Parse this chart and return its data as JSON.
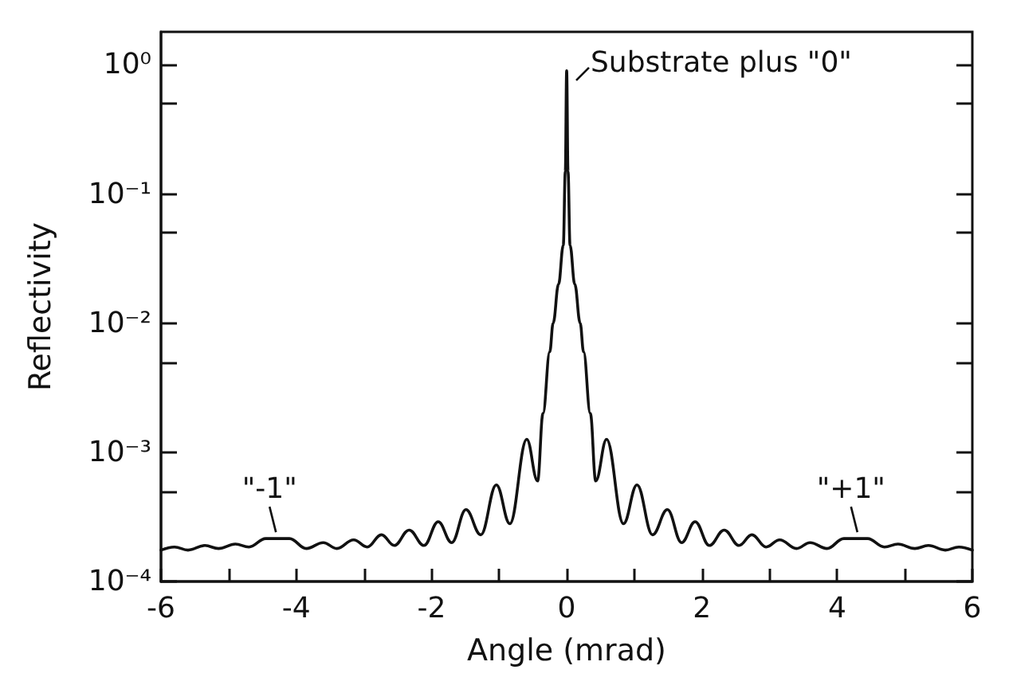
{
  "chart_data": {
    "type": "line",
    "xlabel": "Angle (mrad)",
    "ylabel": "Reflectivity",
    "log": "y",
    "grid": false,
    "marker": "none",
    "line_style": "solid",
    "xlim": [
      -6,
      6
    ],
    "ylim": [
      0.0001,
      1.8
    ],
    "xticks": [
      -6,
      {
        "value": -5,
        "label": null
      },
      -4,
      {
        "value": -3,
        "label": null
      },
      -2,
      {
        "value": -1,
        "label": null
      },
      0,
      {
        "value": 1,
        "label": null
      },
      2,
      {
        "value": 3,
        "label": null
      },
      4,
      {
        "value": 5,
        "label": null
      },
      6
    ],
    "yticks": [
      {
        "value": 0.0001,
        "label": "10⁻⁴"
      },
      {
        "value": 0.0005,
        "label": null
      },
      {
        "value": 0.001,
        "label": "10⁻³"
      },
      {
        "value": 0.005,
        "label": null
      },
      {
        "value": 0.01,
        "label": "10⁻²"
      },
      {
        "value": 0.05,
        "label": null
      },
      {
        "value": 0.1,
        "label": "10⁻¹"
      },
      {
        "value": 0.5,
        "label": null
      },
      {
        "value": 1,
        "label": "10⁰"
      }
    ],
    "annotations": [
      {
        "text": "Substrate plus \"0\"",
        "x": 0,
        "y": 0.9
      },
      {
        "text": "\"-1\"",
        "x": -4.3,
        "y": 0.000215
      },
      {
        "text": "\"+1\"",
        "x": 4.3,
        "y": 0.000215
      }
    ],
    "series": [
      {
        "color": "#111111",
        "x": [
          -6,
          -5.8,
          -5.6,
          -5.35,
          -5.15,
          -4.9,
          -4.7,
          -4.45,
          -4.1,
          -3.85,
          -3.6,
          -3.4,
          -3.15,
          -2.95,
          -2.74,
          -2.55,
          -2.33,
          -2.11,
          -1.9,
          -1.7,
          -1.49,
          -1.27,
          -1.04,
          -0.84,
          -0.59,
          -0.43,
          -0.35,
          -0.25,
          -0.2,
          -0.12,
          -0.05,
          -0.02,
          0,
          0.02,
          0.05,
          0.12,
          0.2,
          0.25,
          0.35,
          0.43,
          0.59,
          0.84,
          1.04,
          1.27,
          1.49,
          1.7,
          1.9,
          2.11,
          2.33,
          2.55,
          2.74,
          2.95,
          3.15,
          3.4,
          3.6,
          3.85,
          4.1,
          4.45,
          4.7,
          4.9,
          5.15,
          5.35,
          5.6,
          5.8,
          6
        ],
        "values": [
          0.000175,
          0.000185,
          0.000175,
          0.00019,
          0.00018,
          0.000195,
          0.000185,
          0.000215,
          0.000215,
          0.00018,
          0.0002,
          0.00018,
          0.00021,
          0.000185,
          0.00023,
          0.00019,
          0.00025,
          0.00019,
          0.00029,
          0.0002,
          0.00036,
          0.00023,
          0.00056,
          0.00028,
          0.00126,
          0.0006,
          0.002,
          0.006,
          0.01,
          0.02,
          0.04,
          0.15,
          0.9,
          0.15,
          0.04,
          0.02,
          0.01,
          0.006,
          0.002,
          0.0006,
          0.00126,
          0.00028,
          0.00056,
          0.00023,
          0.00036,
          0.0002,
          0.00029,
          0.00019,
          0.00025,
          0.00019,
          0.00023,
          0.000185,
          0.00021,
          0.00018,
          0.0002,
          0.00018,
          0.000215,
          0.000215,
          0.000185,
          0.000195,
          0.00018,
          0.00019,
          0.000175,
          0.000185,
          0.000175
        ]
      }
    ]
  }
}
